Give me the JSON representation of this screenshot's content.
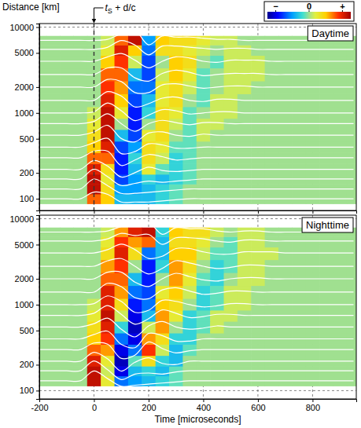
{
  "chart_data": [
    {
      "type": "heatmap",
      "title": "Daytime",
      "y_label": "Distance [km]",
      "annotation": {
        "text": "tS + d/c",
        "x": 0
      },
      "colorbar": {
        "range": [
          -1,
          1
        ],
        "ticks": [
          {
            "value": -0.8,
            "label": "−"
          },
          0,
          {
            "value": 0.8,
            "label": "+"
          }
        ]
      },
      "x": [
        -200,
        -150,
        -100,
        -50,
        0,
        50,
        100,
        150,
        200,
        250,
        300,
        350,
        400,
        450,
        500,
        550,
        600,
        650,
        700,
        750,
        800,
        850,
        900,
        950
      ],
      "y": [
        100,
        130,
        170,
        220,
        300,
        400,
        550,
        750,
        1000,
        1400,
        2000,
        2800,
        4000,
        5500,
        7000
      ],
      "cells": [
        [
          0,
          0,
          0,
          0,
          0.6,
          0.4,
          -0.3,
          -0.3,
          -0.3,
          -0.2,
          -0.1,
          0,
          0,
          0,
          0,
          0,
          0,
          0,
          0,
          0,
          0,
          0,
          0,
          0
        ],
        [
          0,
          0,
          0,
          0,
          0.9,
          0.3,
          -0.4,
          -0.4,
          -0.3,
          -0.2,
          -0.1,
          0,
          0,
          0,
          0,
          0,
          0,
          0,
          0,
          0,
          0,
          0,
          0,
          0
        ],
        [
          0,
          0,
          0,
          0,
          0.9,
          0.2,
          -0.6,
          -0.4,
          -0.2,
          -0.3,
          -0.2,
          -0.1,
          0,
          0,
          0,
          0,
          0,
          0,
          0,
          0,
          0,
          0,
          0,
          0
        ],
        [
          0,
          0,
          0,
          0,
          0.8,
          0.3,
          -0.7,
          -0.3,
          0.2,
          -0.1,
          -0.2,
          -0.1,
          0,
          0,
          0,
          0,
          0,
          0,
          0,
          0,
          0,
          0,
          0,
          0
        ],
        [
          0,
          0,
          0,
          0,
          0.6,
          0.6,
          -0.7,
          -0.2,
          0.3,
          0.1,
          -0.2,
          -0.1,
          0,
          0,
          0,
          0,
          0,
          0,
          0,
          0,
          0,
          0,
          0,
          0
        ],
        [
          0,
          0,
          0,
          0,
          0.4,
          0.8,
          -0.6,
          -0.4,
          0.3,
          0.2,
          -0.1,
          -0.1,
          0,
          0,
          0,
          0,
          0,
          0,
          0,
          0,
          0,
          0,
          0,
          0
        ],
        [
          0,
          0,
          0,
          0,
          0.3,
          0.9,
          -0.3,
          -0.6,
          0.2,
          0.3,
          0,
          -0.1,
          0.1,
          0,
          0,
          0,
          0,
          0,
          0,
          0,
          0,
          0,
          0,
          0
        ],
        [
          0,
          0,
          0,
          0,
          0.2,
          0.9,
          0,
          -0.7,
          0,
          0.3,
          0.1,
          -0.1,
          0.1,
          0.1,
          0,
          0,
          0,
          0,
          0,
          0,
          0,
          0,
          0,
          0
        ],
        [
          0,
          0,
          0,
          0,
          0.1,
          0.9,
          0.2,
          -0.7,
          -0.2,
          0.3,
          0.2,
          -0.1,
          0,
          0.1,
          0.1,
          0,
          0,
          0,
          0,
          0,
          0,
          0,
          0,
          0
        ],
        [
          0,
          0,
          0,
          0,
          0,
          0.8,
          0.4,
          -0.6,
          -0.3,
          0.2,
          0.3,
          0,
          -0.1,
          0.1,
          0.1,
          0,
          0,
          0,
          0,
          0,
          0,
          0,
          0,
          0
        ],
        [
          0,
          0,
          0,
          0,
          0,
          0.7,
          0.5,
          -0.5,
          -0.5,
          0.2,
          0.3,
          0.1,
          -0.1,
          0,
          0.1,
          0.1,
          0,
          0,
          0,
          0,
          0,
          0,
          0,
          0
        ],
        [
          0,
          0,
          0,
          0,
          0,
          0.6,
          0.6,
          -0.3,
          -0.6,
          0.1,
          0.4,
          0.2,
          -0.1,
          0,
          0.1,
          0.1,
          0.1,
          0,
          0,
          0,
          0,
          0,
          0,
          0
        ],
        [
          0,
          0,
          0,
          0,
          0,
          0.4,
          0.7,
          0.1,
          -0.6,
          0,
          0.4,
          0.3,
          0,
          -0.1,
          0.1,
          0.1,
          0.1,
          0,
          0,
          0,
          0,
          0,
          0,
          0
        ],
        [
          0,
          0,
          0,
          0,
          0,
          0.2,
          0.8,
          0.4,
          -0.5,
          0.3,
          0.3,
          0.2,
          0.1,
          0,
          0.1,
          0.1,
          0,
          0,
          0,
          0,
          0,
          0,
          0,
          0
        ],
        [
          0,
          0,
          0,
          0,
          0,
          0.1,
          0.6,
          0.9,
          -0.4,
          0.4,
          0.3,
          0.3,
          0.2,
          0.1,
          0.1,
          0,
          0,
          0,
          0,
          0,
          0,
          0,
          0,
          0
        ]
      ],
      "xlim": [
        -200,
        960
      ],
      "ylim": [
        73,
        11000
      ],
      "xticks": [
        -200,
        0,
        200,
        400,
        600,
        800
      ],
      "yticks": [
        100,
        200,
        500,
        1000,
        2000,
        5000,
        10000
      ],
      "log": "y",
      "grid": true,
      "tick_labels": "y"
    },
    {
      "type": "heatmap",
      "title": "Nighttime",
      "x_label": "Time [microseconds]",
      "x": [
        -200,
        -150,
        -100,
        -50,
        0,
        50,
        100,
        150,
        200,
        250,
        300,
        350,
        400,
        450,
        500,
        550,
        600,
        650,
        700,
        750,
        800,
        850,
        900,
        950
      ],
      "y": [
        130,
        170,
        220,
        300,
        400,
        550,
        750,
        1000,
        1400,
        2000,
        2800,
        4000,
        5500,
        7000
      ],
      "cells": [
        [
          0,
          0,
          0,
          0,
          0.9,
          0.2,
          -0.5,
          -0.4,
          -0.3,
          -0.2,
          -0.1,
          0,
          0,
          0,
          0,
          0,
          0,
          0,
          0,
          0,
          0,
          0,
          0,
          0
        ],
        [
          0,
          0,
          0,
          0,
          0.9,
          0.1,
          -0.8,
          -0.3,
          -0.2,
          -0.3,
          -0.1,
          0,
          0,
          0,
          0,
          0,
          0,
          0,
          0,
          0,
          0,
          0,
          0,
          0
        ],
        [
          0,
          0,
          0,
          0,
          0.8,
          0.2,
          -0.9,
          -0.1,
          0.3,
          -0.2,
          -0.3,
          0,
          0,
          0,
          0,
          0,
          0,
          0,
          0,
          0,
          0,
          0,
          0,
          0
        ],
        [
          0,
          0,
          0,
          0,
          0.6,
          0.5,
          -0.8,
          -0.5,
          0.7,
          0.1,
          -0.3,
          -0.1,
          0,
          0,
          0,
          0,
          0,
          0,
          0,
          0,
          0,
          0,
          0,
          0
        ],
        [
          0,
          0,
          0,
          0,
          0.4,
          0.7,
          -0.5,
          -0.8,
          0.5,
          0.3,
          -0.2,
          -0.2,
          0,
          0,
          0,
          0,
          0,
          0,
          0,
          0,
          0,
          0,
          0,
          0
        ],
        [
          0,
          0,
          0,
          0,
          0.3,
          0.8,
          -0.2,
          -0.9,
          0.1,
          0.5,
          0,
          -0.2,
          -0.1,
          0.1,
          0,
          0,
          0,
          0,
          0,
          0,
          0,
          0,
          0,
          0
        ],
        [
          0,
          0,
          0,
          0,
          0.2,
          0.9,
          0.1,
          -0.8,
          -0.3,
          0.5,
          0.2,
          -0.2,
          -0.1,
          0.1,
          0.1,
          0,
          0,
          0,
          0,
          0,
          0,
          0,
          0,
          0
        ],
        [
          0,
          0,
          0,
          0,
          0.1,
          0.8,
          0.3,
          -0.7,
          -0.5,
          0.4,
          0.3,
          0,
          -0.2,
          -0.1,
          0.1,
          0.1,
          0,
          0,
          0,
          0,
          0,
          0,
          0,
          0
        ],
        [
          0,
          0,
          0,
          0,
          0,
          0.8,
          0.5,
          -0.5,
          -0.6,
          0.2,
          0.4,
          0.1,
          -0.2,
          -0.1,
          0.1,
          0.1,
          0,
          0,
          0,
          0,
          0,
          0,
          0,
          0
        ],
        [
          0,
          0,
          0,
          0,
          0,
          0.6,
          0.6,
          -0.3,
          -0.7,
          0,
          0.5,
          0.2,
          -0.1,
          -0.2,
          0,
          0.1,
          0.1,
          0,
          0,
          0,
          0,
          0,
          0,
          0
        ],
        [
          0,
          0,
          0,
          0,
          0,
          0.5,
          0.7,
          0,
          -0.7,
          -0.2,
          0.5,
          0.3,
          0,
          -0.2,
          -0.1,
          0.1,
          0.1,
          0,
          0,
          0,
          0,
          0,
          0,
          0
        ],
        [
          0,
          0,
          0,
          0,
          0,
          0.3,
          0.8,
          0.3,
          -0.5,
          -0.3,
          0.4,
          0.4,
          0.1,
          -0.1,
          -0.1,
          0.1,
          0.1,
          0.1,
          0,
          0,
          0,
          0,
          0,
          0
        ],
        [
          0,
          0,
          0,
          0,
          0,
          0.2,
          0.7,
          0.5,
          0.6,
          -0.3,
          0.3,
          0.3,
          0.2,
          0,
          -0.1,
          0.1,
          0.1,
          0,
          0,
          0,
          0,
          0,
          0,
          0
        ],
        [
          0,
          0,
          0,
          0,
          0,
          0.1,
          0.5,
          0.8,
          0.9,
          -0.2,
          0.4,
          0.3,
          0.3,
          0.1,
          0,
          0.1,
          0.1,
          0,
          0,
          0,
          0,
          0,
          0,
          0
        ]
      ],
      "xlim": [
        -200,
        960
      ],
      "ylim": [
        80,
        11000
      ],
      "xticks": [
        -200,
        0,
        200,
        400,
        600,
        800
      ],
      "yticks": [
        100,
        200,
        500,
        1000,
        2000,
        5000,
        10000
      ],
      "log": "y",
      "grid": true,
      "tick_labels": true
    }
  ]
}
